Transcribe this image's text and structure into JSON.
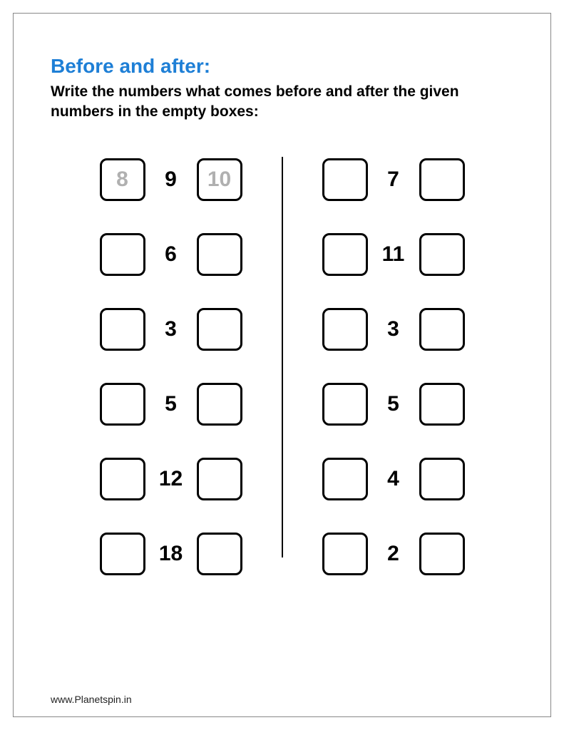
{
  "title": "Before and after:",
  "title_color": "#1e7fd6",
  "instructions": "Write the numbers what comes before and after the given numbers in the empty boxes:",
  "instructions_color": "#000000",
  "example_color": "#b0b0b0",
  "box_border_color": "#000000",
  "background_color": "#ffffff",
  "left_column": [
    {
      "before": "8",
      "given": "9",
      "after": "10",
      "is_example": true
    },
    {
      "before": "",
      "given": "6",
      "after": "",
      "is_example": false
    },
    {
      "before": "",
      "given": "3",
      "after": "",
      "is_example": false
    },
    {
      "before": "",
      "given": "5",
      "after": "",
      "is_example": false
    },
    {
      "before": "",
      "given": "12",
      "after": "",
      "is_example": false
    },
    {
      "before": "",
      "given": "18",
      "after": "",
      "is_example": false
    }
  ],
  "right_column": [
    {
      "before": "",
      "given": "7",
      "after": "",
      "is_example": false
    },
    {
      "before": "",
      "given": "11",
      "after": "",
      "is_example": false
    },
    {
      "before": "",
      "given": "3",
      "after": "",
      "is_example": false
    },
    {
      "before": "",
      "given": "5",
      "after": "",
      "is_example": false
    },
    {
      "before": "",
      "given": "4",
      "after": "",
      "is_example": false
    },
    {
      "before": "",
      "given": "2",
      "after": "",
      "is_example": false
    }
  ],
  "footer": "www.Planetspin.in"
}
